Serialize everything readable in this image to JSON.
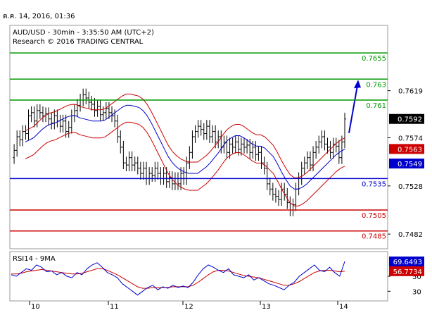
{
  "timestamp": "ต.ค. 14, 2016, 01:36",
  "chart_data": [
    {
      "type": "candlestick",
      "title": "AUD/USD - 30min - 3:35:50 AM (UTC+2)",
      "subtitle": "Research © 2016 TRADING CENTRAL",
      "x_ticks": [
        "10",
        "11",
        "12",
        "13",
        "14"
      ],
      "y_ticks": [
        0.7619,
        0.7574,
        0.7528,
        0.7482
      ],
      "ylim": [
        0.747,
        0.768
      ],
      "levels": [
        {
          "label": "0.7655",
          "value": 0.7655,
          "color": "#009900"
        },
        {
          "label": "0.763",
          "value": 0.763,
          "color": "#009900"
        },
        {
          "label": "0.761",
          "value": 0.761,
          "color": "#009900"
        },
        {
          "label": "0.7535",
          "value": 0.7535,
          "color": "#0000cc"
        },
        {
          "label": "0.7505",
          "value": 0.7505,
          "color": "#cc0000"
        },
        {
          "label": "0.7485",
          "value": 0.7485,
          "color": "#cc0000"
        }
      ],
      "price_tags": [
        {
          "label": "0.7592",
          "value": 0.7592,
          "bg": "#000000",
          "fg": "#ffffff"
        },
        {
          "label": "0.7563",
          "value": 0.75633,
          "bg": "#cc0000",
          "fg": "#ffffff"
        },
        {
          "label": "0.7549",
          "value": 0.75494,
          "bg": "#0000cc",
          "fg": "#ffffff"
        }
      ],
      "price_path": [
        0.7555,
        0.7562,
        0.7575,
        0.7572,
        0.758,
        0.7578,
        0.7595,
        0.7598,
        0.759,
        0.76,
        0.7598,
        0.7595,
        0.7597,
        0.7592,
        0.7588,
        0.7595,
        0.759,
        0.7585,
        0.759,
        0.758,
        0.7584,
        0.7595,
        0.76,
        0.7605,
        0.761,
        0.7615,
        0.7612,
        0.7608,
        0.7606,
        0.76,
        0.7604,
        0.7596,
        0.7598,
        0.7602,
        0.7598,
        0.7595,
        0.759,
        0.7575,
        0.7565,
        0.755,
        0.7548,
        0.7555,
        0.7548,
        0.755,
        0.7545,
        0.754,
        0.7545,
        0.7535,
        0.754,
        0.7538,
        0.7545,
        0.754,
        0.7535,
        0.754,
        0.7532,
        0.7536,
        0.753,
        0.7535,
        0.753,
        0.754,
        0.7535,
        0.755,
        0.756,
        0.7575,
        0.758,
        0.7585,
        0.7582,
        0.7578,
        0.7585,
        0.7575,
        0.758,
        0.757,
        0.7575,
        0.7565,
        0.757,
        0.756,
        0.7568,
        0.7565,
        0.757,
        0.7563,
        0.7568,
        0.7565,
        0.7567,
        0.756,
        0.7565,
        0.7558,
        0.756,
        0.755,
        0.7545,
        0.753,
        0.7525,
        0.752,
        0.7518,
        0.7515,
        0.7525,
        0.752,
        0.7512,
        0.7505,
        0.751,
        0.7525,
        0.7535,
        0.7545,
        0.755,
        0.7555,
        0.7548,
        0.756,
        0.7565,
        0.757,
        0.7575,
        0.7568,
        0.7565,
        0.756,
        0.7568,
        0.7566,
        0.7555,
        0.757,
        0.7592
      ],
      "mid_band": [
        0.757,
        0.7572,
        0.7574,
        0.7578,
        0.7582,
        0.7585,
        0.7587,
        0.7588,
        0.759,
        0.7592,
        0.7594,
        0.7595,
        0.7595,
        0.7593,
        0.7592,
        0.7591,
        0.759,
        0.759,
        0.759,
        0.7591,
        0.7594,
        0.7597,
        0.76,
        0.7603,
        0.7605,
        0.7605,
        0.7604,
        0.7603,
        0.76,
        0.7595,
        0.7588,
        0.758,
        0.7572,
        0.7564,
        0.7556,
        0.755,
        0.7546,
        0.7543,
        0.7541,
        0.754,
        0.754,
        0.754,
        0.7543,
        0.7546,
        0.755,
        0.7555,
        0.756,
        0.7566,
        0.7571,
        0.7574,
        0.7576,
        0.7576,
        0.7574,
        0.7571,
        0.7568,
        0.7566,
        0.7566,
        0.7564,
        0.756,
        0.7556,
        0.7549,
        0.7541,
        0.7534,
        0.7528,
        0.7525,
        0.7525,
        0.7527,
        0.753,
        0.7534,
        0.7538,
        0.7542,
        0.7546,
        0.755,
        0.7554,
        0.7558,
        0.7561,
        0.7563
      ],
      "rsi_path": [
        52,
        50,
        55,
        60,
        58,
        65,
        62,
        56,
        57,
        52,
        55,
        50,
        48,
        55,
        52,
        60,
        65,
        68,
        62,
        55,
        52,
        48,
        40,
        35,
        30,
        25,
        30,
        35,
        38,
        32,
        36,
        34,
        38,
        35,
        37,
        35,
        42,
        52,
        60,
        65,
        62,
        58,
        55,
        60,
        52,
        50,
        48,
        52,
        45,
        48,
        44,
        40,
        38,
        35,
        32,
        38,
        42,
        50,
        55,
        60,
        65,
        58,
        56,
        62,
        55,
        50,
        69.65
      ],
      "rsi_ma_path": [
        53,
        53,
        54,
        56,
        57,
        58,
        59,
        58,
        57,
        56,
        55,
        54,
        53,
        53,
        54,
        56,
        58,
        60,
        60,
        58,
        55,
        52,
        48,
        44,
        40,
        36,
        34,
        34,
        35,
        35,
        35,
        35,
        36,
        36,
        36,
        36,
        38,
        42,
        47,
        52,
        56,
        58,
        58,
        57,
        55,
        53,
        51,
        50,
        49,
        48,
        46,
        44,
        42,
        40,
        38,
        38,
        40,
        43,
        47,
        51,
        55,
        57,
        58,
        58,
        57,
        56,
        56.77
      ],
      "rsi_panel": {
        "title": "RSI14 - 9MA",
        "ylim": [
          20,
          80
        ],
        "y_ticks": [
          50,
          30
        ],
        "tags": [
          {
            "label": "69.6493",
            "value": 69.6493,
            "bg": "#0000cc",
            "fg": "#ffffff"
          },
          {
            "label": "56.7734",
            "value": 56.7734,
            "bg": "#cc0000",
            "fg": "#ffffff"
          }
        ]
      }
    }
  ]
}
